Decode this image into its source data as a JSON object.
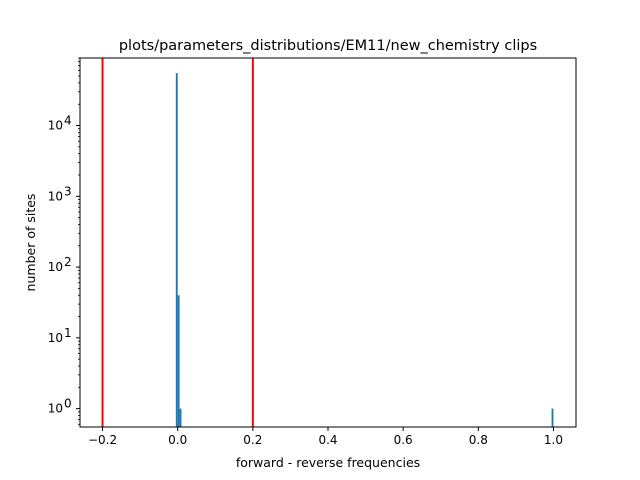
{
  "chart_data": {
    "type": "bar",
    "title": "plots/parameters_distributions/EM11/new_chemistry clips",
    "xlabel": "forward - reverse frequencies",
    "ylabel": "number of sites",
    "x_scale": "linear",
    "y_scale": "log",
    "xlim": [
      -0.26,
      1.06
    ],
    "ylim": [
      0.55,
      90000
    ],
    "grid": false,
    "x_ticks": [
      {
        "value": -0.2,
        "label": "−0.2"
      },
      {
        "value": 0.0,
        "label": "0.0"
      },
      {
        "value": 0.2,
        "label": "0.2"
      },
      {
        "value": 0.4,
        "label": "0.4"
      },
      {
        "value": 0.6,
        "label": "0.6"
      },
      {
        "value": 0.8,
        "label": "0.8"
      },
      {
        "value": 1.0,
        "label": "1.0"
      }
    ],
    "y_ticks": [
      {
        "value": 1,
        "label": "10",
        "exp": "0"
      },
      {
        "value": 10,
        "label": "10",
        "exp": "1"
      },
      {
        "value": 100,
        "label": "10",
        "exp": "2"
      },
      {
        "value": 1000,
        "label": "10",
        "exp": "3"
      },
      {
        "value": 10000,
        "label": "10",
        "exp": "4"
      }
    ],
    "bars": [
      {
        "x0": -0.005,
        "x1": 0.0,
        "count": 55000
      },
      {
        "x0": 0.0,
        "x1": 0.005,
        "count": 40
      },
      {
        "x0": 0.005,
        "x1": 0.01,
        "count": 1
      },
      {
        "x0": 0.995,
        "x1": 1.0,
        "count": 1
      }
    ],
    "threshold_lines": [
      {
        "x": -0.2,
        "color": "#ff0000"
      },
      {
        "x": 0.2,
        "color": "#ff0000"
      }
    ],
    "bar_color": "#1f77b4"
  }
}
